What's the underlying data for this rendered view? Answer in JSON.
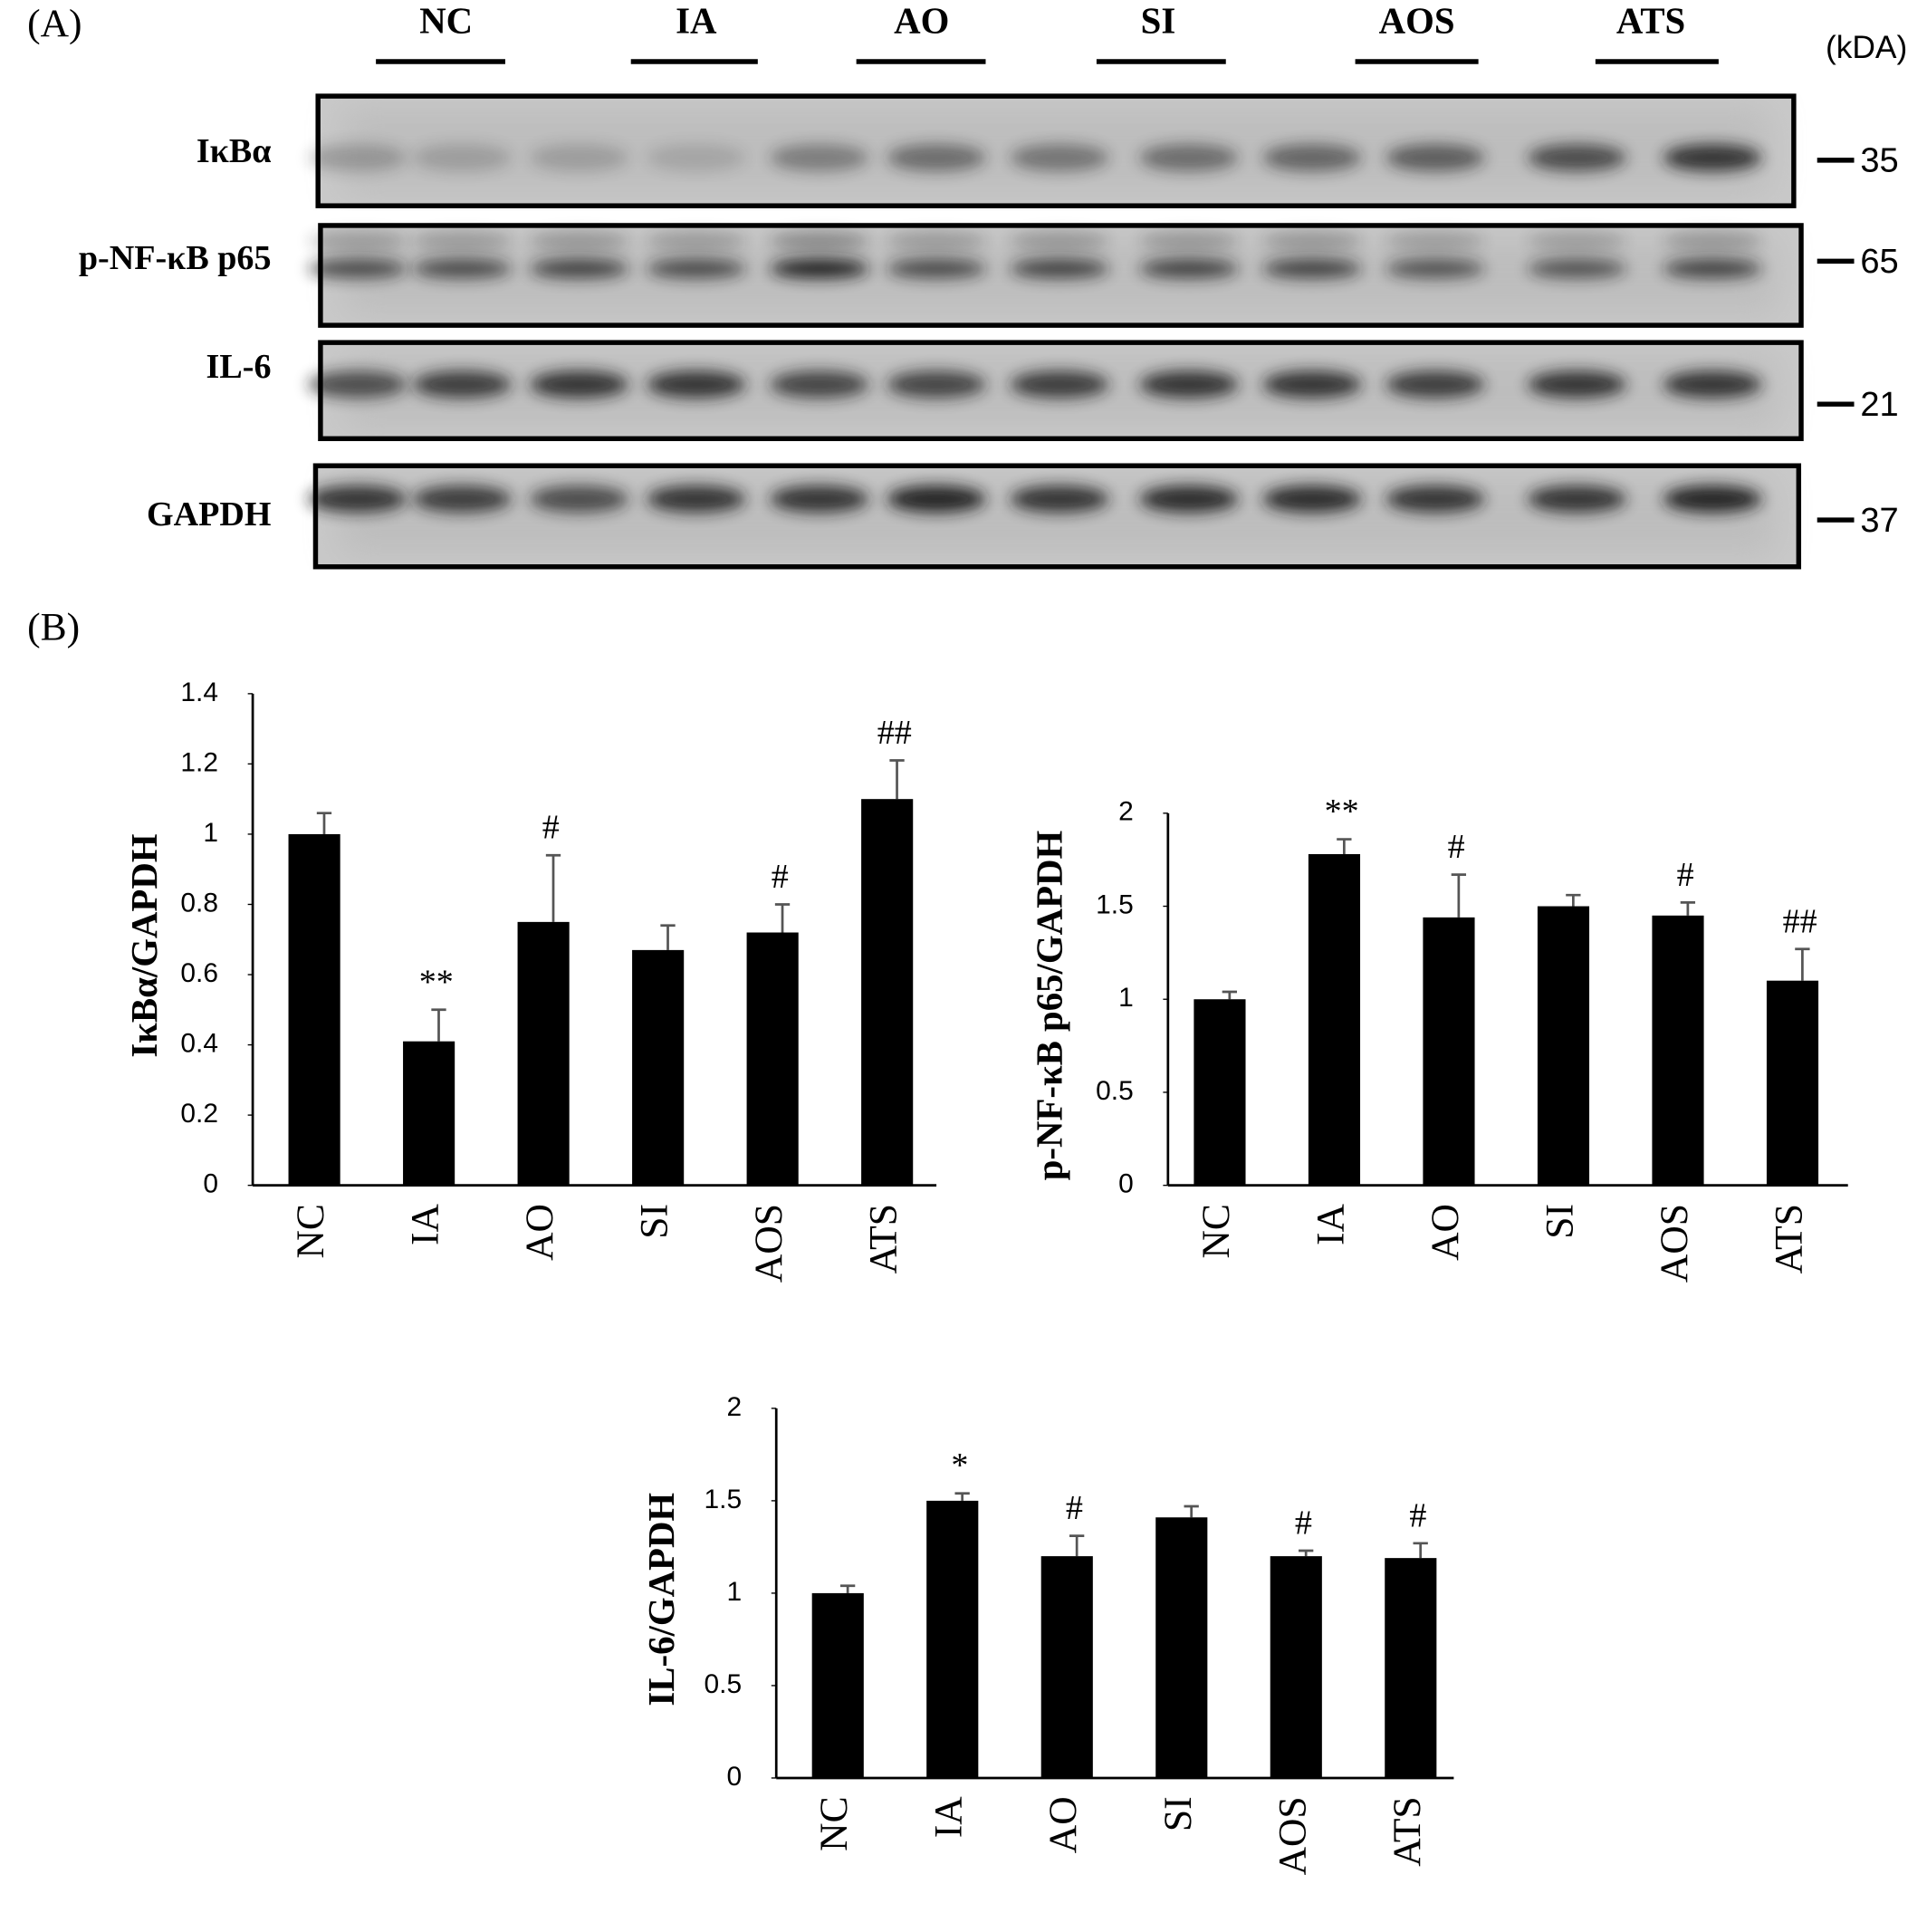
{
  "panel_labels": [
    "(A)",
    "(B)"
  ],
  "blot": {
    "lanes": [
      "NC",
      "IA",
      "AO",
      "SI",
      "AOS",
      "ATS"
    ],
    "unit": "(kDA)",
    "proteins": [
      "IκBα",
      "p-NF-κB p65",
      "IL-6",
      "GAPDH"
    ],
    "markers": [
      "35",
      "65",
      "21",
      "37"
    ]
  },
  "chart_data": [
    {
      "type": "bar",
      "ylabel": "IκBα/GAPDH",
      "color": "#000000",
      "categories": [
        "NC",
        "IA",
        "AO",
        "SI",
        "AOS",
        "ATS"
      ],
      "values": [
        1.0,
        0.41,
        0.75,
        0.67,
        0.72,
        1.1
      ],
      "errors": [
        0.06,
        0.09,
        0.19,
        0.07,
        0.08,
        0.11
      ],
      "annotations": [
        null,
        "**",
        "#",
        null,
        "#",
        "##"
      ],
      "ylim": [
        0,
        1.4
      ],
      "yticks": [
        0,
        0.2,
        0.4,
        0.6,
        0.8,
        1,
        1.2,
        1.4
      ]
    },
    {
      "type": "bar",
      "ylabel": "p-NF-κB p65/GAPDH",
      "color": "#000000",
      "categories": [
        "NC",
        "IA",
        "AO",
        "SI",
        "AOS",
        "ATS"
      ],
      "values": [
        1.0,
        1.78,
        1.44,
        1.5,
        1.45,
        1.1
      ],
      "errors": [
        0.04,
        0.08,
        0.23,
        0.06,
        0.07,
        0.17
      ],
      "annotations": [
        null,
        "**",
        "#",
        null,
        "#",
        "##"
      ],
      "ylim": [
        0,
        2
      ],
      "yticks": [
        0,
        0.5,
        1,
        1.5,
        2
      ]
    },
    {
      "type": "bar",
      "ylabel": "IL-6/GAPDH",
      "color": "#000000",
      "categories": [
        "NC",
        "IA",
        "AO",
        "SI",
        "AOS",
        "ATS"
      ],
      "values": [
        1.0,
        1.5,
        1.2,
        1.41,
        1.2,
        1.19
      ],
      "errors": [
        0.04,
        0.04,
        0.11,
        0.06,
        0.03,
        0.08
      ],
      "annotations": [
        null,
        "*",
        "#",
        null,
        "#",
        "#"
      ],
      "ylim": [
        0,
        2
      ],
      "yticks": [
        0,
        0.5,
        1,
        1.5,
        2
      ]
    }
  ]
}
